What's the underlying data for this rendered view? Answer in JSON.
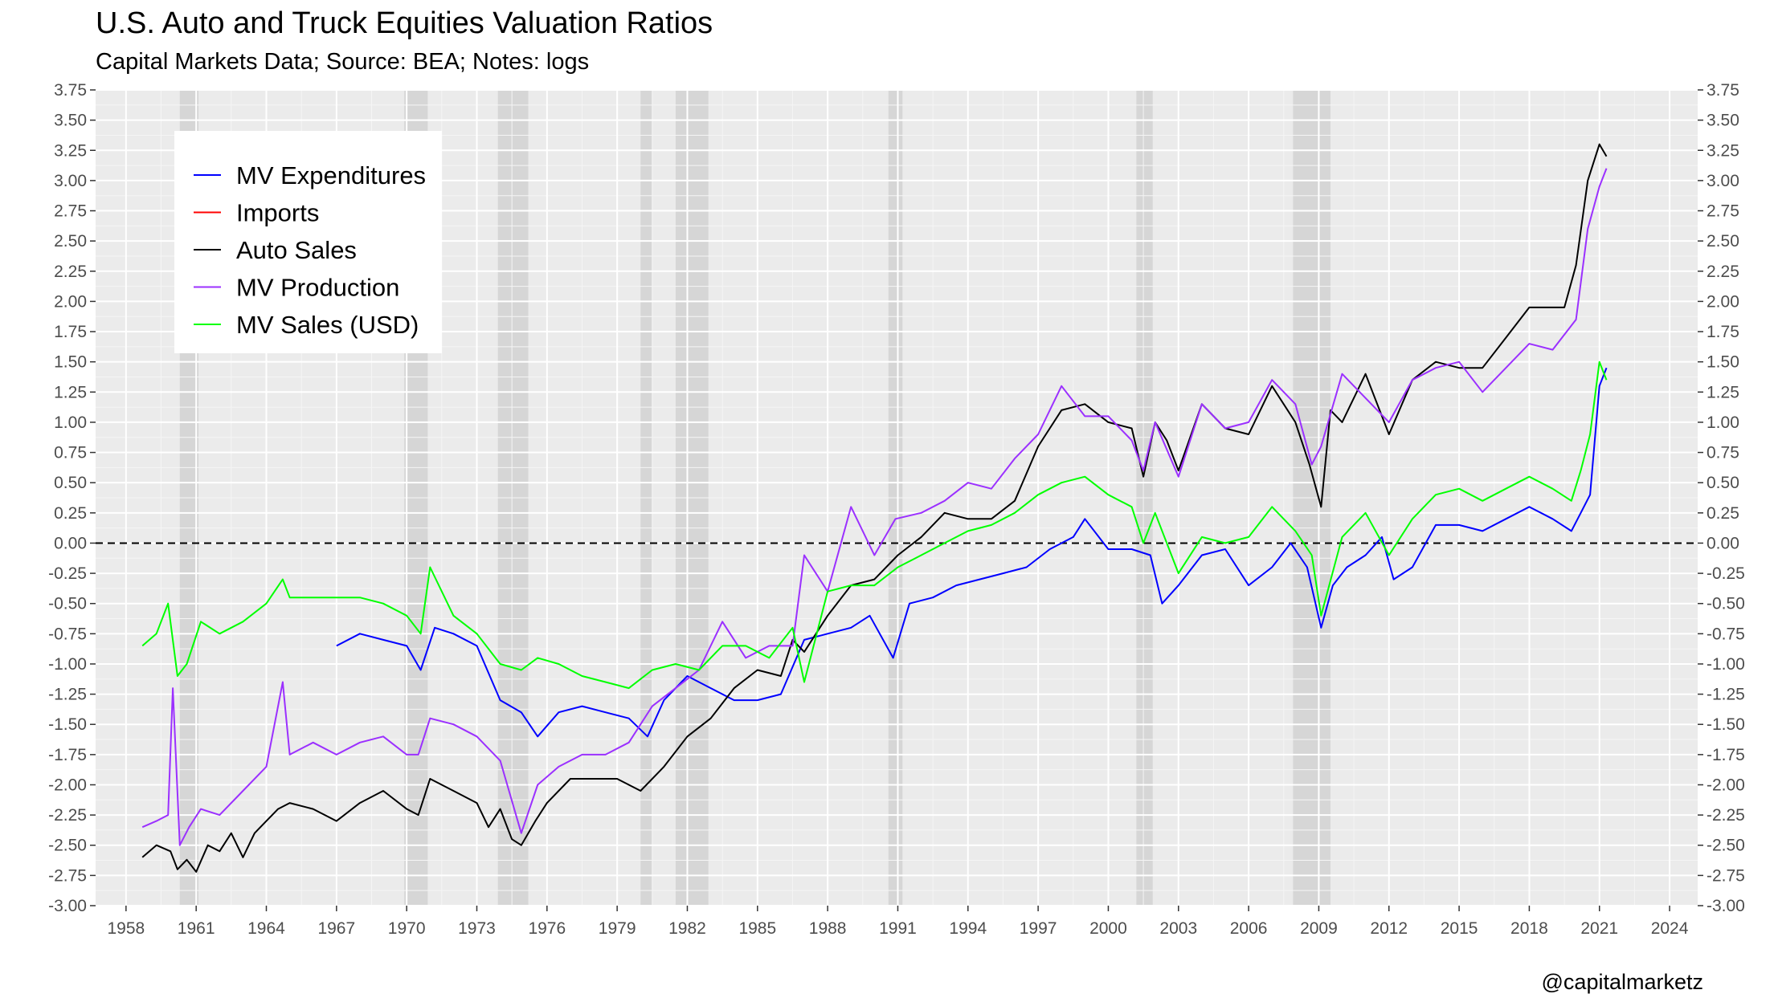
{
  "title": "U.S. Auto and Truck Equities Valuation Ratios",
  "subtitle": "Capital Markets Data; Source: BEA; Notes: logs",
  "credit": "@capitalmarketz",
  "chart_data": {
    "type": "line",
    "title": "U.S. Auto and Truck Equities Valuation Ratios",
    "subtitle": "Capital Markets Data; Source: BEA; Notes: logs",
    "xlabel": "",
    "ylabel": "",
    "xlim": [
      1956.7,
      2025.2
    ],
    "ylim": [
      -3.0,
      3.75
    ],
    "x_ticks": [
      "1958",
      "1961",
      "1964",
      "1967",
      "1970",
      "1973",
      "1976",
      "1979",
      "1982",
      "1985",
      "1988",
      "1991",
      "1994",
      "1997",
      "2000",
      "2003",
      "2006",
      "2009",
      "2012",
      "2015",
      "2018",
      "2021",
      "2024"
    ],
    "y_ticks": [
      "3.75",
      "3.50",
      "3.25",
      "3.00",
      "2.75",
      "2.50",
      "2.25",
      "2.00",
      "1.75",
      "1.50",
      "1.25",
      "1.00",
      "0.75",
      "0.50",
      "0.25",
      "0.00",
      "-0.25",
      "-0.50",
      "-0.75",
      "-1.00",
      "-1.25",
      "-1.50",
      "-1.75",
      "-2.00",
      "-2.25",
      "-2.50",
      "-2.75",
      "-3.00"
    ],
    "grid": true,
    "zero_line": "dashed",
    "secondary_y_axis": "mirrored",
    "legend_position": "top-left",
    "recession_shading": [
      [
        1960.3,
        1961.1
      ],
      [
        1969.9,
        1970.9
      ],
      [
        1973.9,
        1975.2
      ],
      [
        1980.0,
        1980.5
      ],
      [
        1981.5,
        1982.9
      ],
      [
        1990.6,
        1991.2
      ],
      [
        2001.2,
        2001.9
      ],
      [
        2007.9,
        2009.5
      ]
    ],
    "series": [
      {
        "name": "MV Expenditures",
        "color": "#0000ff",
        "x": [
          1967.0,
          1968.0,
          1969.0,
          1970.0,
          1970.6,
          1971.2,
          1972.0,
          1973.0,
          1974.0,
          1974.9,
          1975.6,
          1976.5,
          1977.5,
          1978.5,
          1979.5,
          1980.3,
          1981.0,
          1982.0,
          1983.0,
          1984.0,
          1985.0,
          1986.0,
          1987.0,
          1988.0,
          1989.0,
          1989.8,
          1990.8,
          1991.5,
          1992.5,
          1993.5,
          1994.5,
          1995.5,
          1996.5,
          1997.5,
          1998.5,
          1999.0,
          2000.0,
          2001.0,
          2001.8,
          2002.3,
          2003.0,
          2004.0,
          2005.0,
          2006.0,
          2007.0,
          2007.8,
          2008.5,
          2009.1,
          2009.6,
          2010.2,
          2011.0,
          2011.7,
          2012.2,
          2013.0,
          2014.0,
          2015.0,
          2016.0,
          2017.0,
          2018.0,
          2019.0,
          2019.8,
          2020.2,
          2020.6,
          2021.0,
          2021.3
        ],
        "y": [
          -0.85,
          -0.75,
          -0.8,
          -0.85,
          -1.05,
          -0.7,
          -0.75,
          -0.85,
          -1.3,
          -1.4,
          -1.6,
          -1.4,
          -1.35,
          -1.4,
          -1.45,
          -1.6,
          -1.3,
          -1.1,
          -1.2,
          -1.3,
          -1.3,
          -1.25,
          -0.8,
          -0.75,
          -0.7,
          -0.6,
          -0.95,
          -0.5,
          -0.45,
          -0.35,
          -0.3,
          -0.25,
          -0.2,
          -0.05,
          0.05,
          0.2,
          -0.05,
          -0.05,
          -0.1,
          -0.5,
          -0.35,
          -0.1,
          -0.05,
          -0.35,
          -0.2,
          0.0,
          -0.2,
          -0.7,
          -0.35,
          -0.2,
          -0.1,
          0.05,
          -0.3,
          -0.2,
          0.15,
          0.15,
          0.1,
          0.2,
          0.3,
          0.2,
          0.1,
          0.25,
          0.4,
          1.3,
          1.45
        ]
      },
      {
        "name": "Imports",
        "color": "#ff0000",
        "x": [],
        "y": []
      },
      {
        "name": "Auto Sales",
        "color": "#000000",
        "x": [
          1958.7,
          1959.3,
          1959.9,
          1960.2,
          1960.6,
          1961.0,
          1961.5,
          1962.0,
          1962.5,
          1963.0,
          1963.5,
          1964.0,
          1964.5,
          1965.0,
          1966.0,
          1967.0,
          1968.0,
          1969.0,
          1970.0,
          1970.5,
          1971.0,
          1972.0,
          1973.0,
          1973.5,
          1974.0,
          1974.5,
          1974.9,
          1975.5,
          1976.0,
          1977.0,
          1978.0,
          1979.0,
          1980.0,
          1981.0,
          1982.0,
          1983.0,
          1984.0,
          1985.0,
          1986.0,
          1986.5,
          1987.0,
          1988.0,
          1989.0,
          1990.0,
          1991.0,
          1992.0,
          1993.0,
          1994.0,
          1995.0,
          1996.0,
          1997.0,
          1998.0,
          1999.0,
          2000.0,
          2001.0,
          2001.5,
          2002.0,
          2002.5,
          2003.0,
          2004.0,
          2005.0,
          2006.0,
          2007.0,
          2008.0,
          2008.6,
          2009.1,
          2009.5,
          2010.0,
          2011.0,
          2012.0,
          2013.0,
          2014.0,
          2015.0,
          2016.0,
          2017.0,
          2018.0,
          2019.0,
          2019.5,
          2020.0,
          2020.5,
          2021.0,
          2021.3
        ],
        "y": [
          -2.6,
          -2.5,
          -2.55,
          -2.7,
          -2.62,
          -2.72,
          -2.5,
          -2.55,
          -2.4,
          -2.6,
          -2.4,
          -2.3,
          -2.2,
          -2.15,
          -2.2,
          -2.3,
          -2.15,
          -2.05,
          -2.2,
          -2.25,
          -1.95,
          -2.05,
          -2.15,
          -2.35,
          -2.2,
          -2.45,
          -2.5,
          -2.3,
          -2.15,
          -1.95,
          -1.95,
          -1.95,
          -2.05,
          -1.85,
          -1.6,
          -1.45,
          -1.2,
          -1.05,
          -1.1,
          -0.8,
          -0.9,
          -0.6,
          -0.35,
          -0.3,
          -0.1,
          0.05,
          0.25,
          0.2,
          0.2,
          0.35,
          0.8,
          1.1,
          1.15,
          1.0,
          0.95,
          0.55,
          1.0,
          0.85,
          0.6,
          1.15,
          0.95,
          0.9,
          1.3,
          1.0,
          0.65,
          0.3,
          1.1,
          1.0,
          1.4,
          0.9,
          1.35,
          1.5,
          1.45,
          1.45,
          1.7,
          1.95,
          1.95,
          1.95,
          2.3,
          3.0,
          3.3,
          3.2
        ]
      },
      {
        "name": "MV Production",
        "color": "#9b30ff",
        "x": [
          1958.7,
          1959.3,
          1959.8,
          1960.0,
          1960.3,
          1960.7,
          1961.2,
          1962.0,
          1963.0,
          1964.0,
          1964.7,
          1965.0,
          1966.0,
          1967.0,
          1968.0,
          1969.0,
          1970.0,
          1970.5,
          1971.0,
          1972.0,
          1973.0,
          1974.0,
          1974.9,
          1975.6,
          1976.5,
          1977.5,
          1978.5,
          1979.5,
          1980.5,
          1981.5,
          1982.5,
          1983.5,
          1984.5,
          1985.5,
          1986.5,
          1987.0,
          1988.0,
          1989.0,
          1990.0,
          1990.9,
          1992.0,
          1993.0,
          1994.0,
          1995.0,
          1996.0,
          1997.0,
          1998.0,
          1999.0,
          2000.0,
          2001.0,
          2001.5,
          2002.0,
          2003.0,
          2004.0,
          2005.0,
          2006.0,
          2007.0,
          2008.0,
          2008.7,
          2009.1,
          2010.0,
          2011.0,
          2012.0,
          2013.0,
          2014.0,
          2015.0,
          2016.0,
          2017.0,
          2018.0,
          2019.0,
          2020.0,
          2020.5,
          2021.0,
          2021.3
        ],
        "y": [
          -2.35,
          -2.3,
          -2.25,
          -1.2,
          -2.5,
          -2.35,
          -2.2,
          -2.25,
          -2.05,
          -1.85,
          -1.15,
          -1.75,
          -1.65,
          -1.75,
          -1.65,
          -1.6,
          -1.75,
          -1.75,
          -1.45,
          -1.5,
          -1.6,
          -1.8,
          -2.4,
          -2.0,
          -1.85,
          -1.75,
          -1.75,
          -1.65,
          -1.35,
          -1.2,
          -1.05,
          -0.65,
          -0.95,
          -0.85,
          -0.85,
          -0.1,
          -0.4,
          0.3,
          -0.1,
          0.2,
          0.25,
          0.35,
          0.5,
          0.45,
          0.7,
          0.9,
          1.3,
          1.05,
          1.05,
          0.85,
          0.6,
          1.0,
          0.55,
          1.15,
          0.95,
          1.0,
          1.35,
          1.15,
          0.65,
          0.8,
          1.4,
          1.2,
          1.0,
          1.35,
          1.45,
          1.5,
          1.25,
          1.45,
          1.65,
          1.6,
          1.85,
          2.6,
          2.95,
          3.1
        ]
      },
      {
        "name": "MV Sales (USD)",
        "color": "#00ff00",
        "x": [
          1958.7,
          1959.3,
          1959.8,
          1960.2,
          1960.6,
          1961.2,
          1962.0,
          1963.0,
          1964.0,
          1964.7,
          1965.0,
          1966.0,
          1967.0,
          1968.0,
          1969.0,
          1970.0,
          1970.6,
          1971.0,
          1972.0,
          1973.0,
          1974.0,
          1974.9,
          1975.6,
          1976.5,
          1977.5,
          1978.5,
          1979.5,
          1980.5,
          1981.5,
          1982.5,
          1983.5,
          1984.5,
          1985.5,
          1986.5,
          1987.0,
          1988.0,
          1989.0,
          1990.0,
          1991.0,
          1992.0,
          1993.0,
          1994.0,
          1995.0,
          1996.0,
          1997.0,
          1998.0,
          1999.0,
          2000.0,
          2001.0,
          2001.5,
          2002.0,
          2003.0,
          2004.0,
          2005.0,
          2006.0,
          2007.0,
          2008.0,
          2008.7,
          2009.1,
          2010.0,
          2011.0,
          2012.0,
          2013.0,
          2014.0,
          2015.0,
          2016.0,
          2017.0,
          2018.0,
          2019.0,
          2019.8,
          2020.2,
          2020.6,
          2021.0,
          2021.3
        ],
        "y": [
          -0.85,
          -0.75,
          -0.5,
          -1.1,
          -1.0,
          -0.65,
          -0.75,
          -0.65,
          -0.5,
          -0.3,
          -0.45,
          -0.45,
          -0.45,
          -0.45,
          -0.5,
          -0.6,
          -0.75,
          -0.2,
          -0.6,
          -0.75,
          -1.0,
          -1.05,
          -0.95,
          -1.0,
          -1.1,
          -1.15,
          -1.2,
          -1.05,
          -1.0,
          -1.05,
          -0.85,
          -0.85,
          -0.95,
          -0.7,
          -1.15,
          -0.4,
          -0.35,
          -0.35,
          -0.2,
          -0.1,
          0.0,
          0.1,
          0.15,
          0.25,
          0.4,
          0.5,
          0.55,
          0.4,
          0.3,
          0.0,
          0.25,
          -0.25,
          0.05,
          0.0,
          0.05,
          0.3,
          0.1,
          -0.1,
          -0.6,
          0.05,
          0.25,
          -0.1,
          0.2,
          0.4,
          0.45,
          0.35,
          0.45,
          0.55,
          0.45,
          0.35,
          0.6,
          0.9,
          1.5,
          1.35
        ]
      }
    ]
  }
}
